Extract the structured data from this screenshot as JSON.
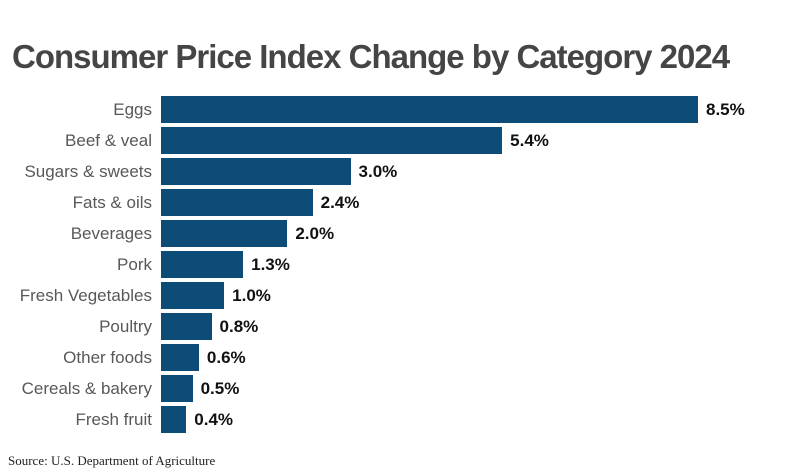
{
  "header": {
    "title": "Consumer Price Index Change by Category 2024"
  },
  "chart_data": {
    "type": "bar",
    "orientation": "horizontal",
    "title": "Consumer Price Index Change by Category 2024",
    "categories": [
      "Eggs",
      "Beef & veal",
      "Sugars & sweets",
      "Fats & oils",
      "Beverages",
      "Pork",
      "Fresh Vegetables",
      "Poultry",
      "Other foods",
      "Cereals & bakery",
      "Fresh fruit"
    ],
    "values": [
      8.5,
      5.4,
      3.0,
      2.4,
      2.0,
      1.3,
      1.0,
      0.8,
      0.6,
      0.5,
      0.4
    ],
    "value_labels": [
      "8.5%",
      "5.4%",
      "3.0%",
      "2.4%",
      "2.0%",
      "1.3%",
      "1.0%",
      "0.8%",
      "0.6%",
      "0.5%",
      "0.4%"
    ],
    "xlabel": "",
    "ylabel": "",
    "xlim": [
      0,
      8.5
    ],
    "grid": false,
    "legend": "none",
    "value_label_position": "outside-end",
    "bar_color": "#0e4c78",
    "title_color": "#454545",
    "category_label_color": "#58585b",
    "value_label_color": "#111111"
  },
  "footer": {
    "source": "Source: U.S. Department of Agriculture"
  }
}
